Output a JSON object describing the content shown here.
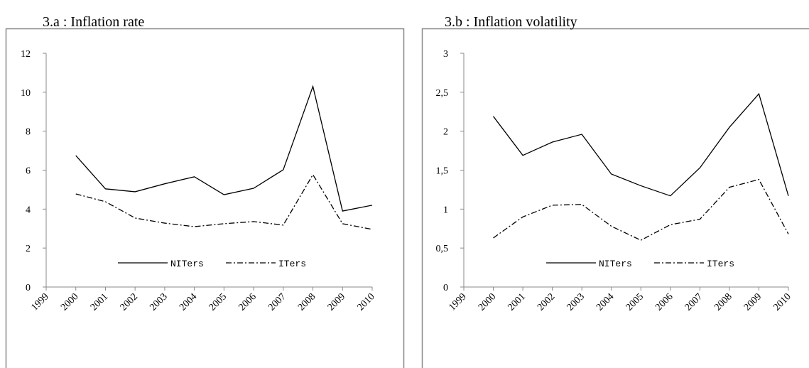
{
  "chart_data": [
    {
      "type": "line",
      "title": "3.a : Inflation rate",
      "x": [
        2000,
        2001,
        2002,
        2003,
        2004,
        2005,
        2006,
        2007,
        2008,
        2009,
        2010
      ],
      "xlim": [
        1999,
        2010
      ],
      "xticks": [
        1999,
        2000,
        2001,
        2002,
        2003,
        2004,
        2005,
        2006,
        2007,
        2008,
        2009,
        2010
      ],
      "ylim": [
        0,
        12
      ],
      "yticks": [
        0,
        2,
        4,
        6,
        8,
        10,
        12
      ],
      "legend": "bottom",
      "series": [
        {
          "name": "NITers",
          "color": "#000000",
          "style": "solid",
          "values": [
            6.75,
            5.04,
            4.89,
            5.3,
            5.66,
            4.74,
            5.07,
            6.02,
            10.3,
            3.9,
            4.2
          ]
        },
        {
          "name": "ITers",
          "color": "#000000",
          "style": "dashdot",
          "values": [
            4.78,
            4.38,
            3.54,
            3.28,
            3.1,
            3.25,
            3.36,
            3.18,
            5.77,
            3.25,
            2.96
          ]
        }
      ]
    },
    {
      "type": "line",
      "title": "3.b : Inflation volatility",
      "x": [
        2000,
        2001,
        2002,
        2003,
        2004,
        2005,
        2006,
        2007,
        2008,
        2009,
        2010
      ],
      "xlim": [
        1999,
        2010
      ],
      "xticks": [
        1999,
        2000,
        2001,
        2002,
        2003,
        2004,
        2005,
        2006,
        2007,
        2008,
        2009,
        2010
      ],
      "ylim": [
        0,
        3
      ],
      "yticks": [
        0,
        {
          "value": 0.5,
          "label": "0,5"
        },
        1,
        {
          "value": 1.5,
          "label": "1,5"
        },
        2,
        {
          "value": 2.5,
          "label": "2,5"
        },
        3
      ],
      "legend": "bottom",
      "series": [
        {
          "name": "NITers",
          "color": "#000000",
          "style": "solid",
          "values": [
            2.19,
            1.69,
            1.86,
            1.96,
            1.45,
            1.3,
            1.17,
            1.53,
            2.05,
            2.48,
            1.17
          ]
        },
        {
          "name": "ITers",
          "color": "#000000",
          "style": "dashdot",
          "values": [
            0.63,
            0.9,
            1.05,
            1.06,
            0.78,
            0.6,
            0.8,
            0.87,
            1.28,
            1.38,
            0.68
          ]
        }
      ]
    }
  ]
}
